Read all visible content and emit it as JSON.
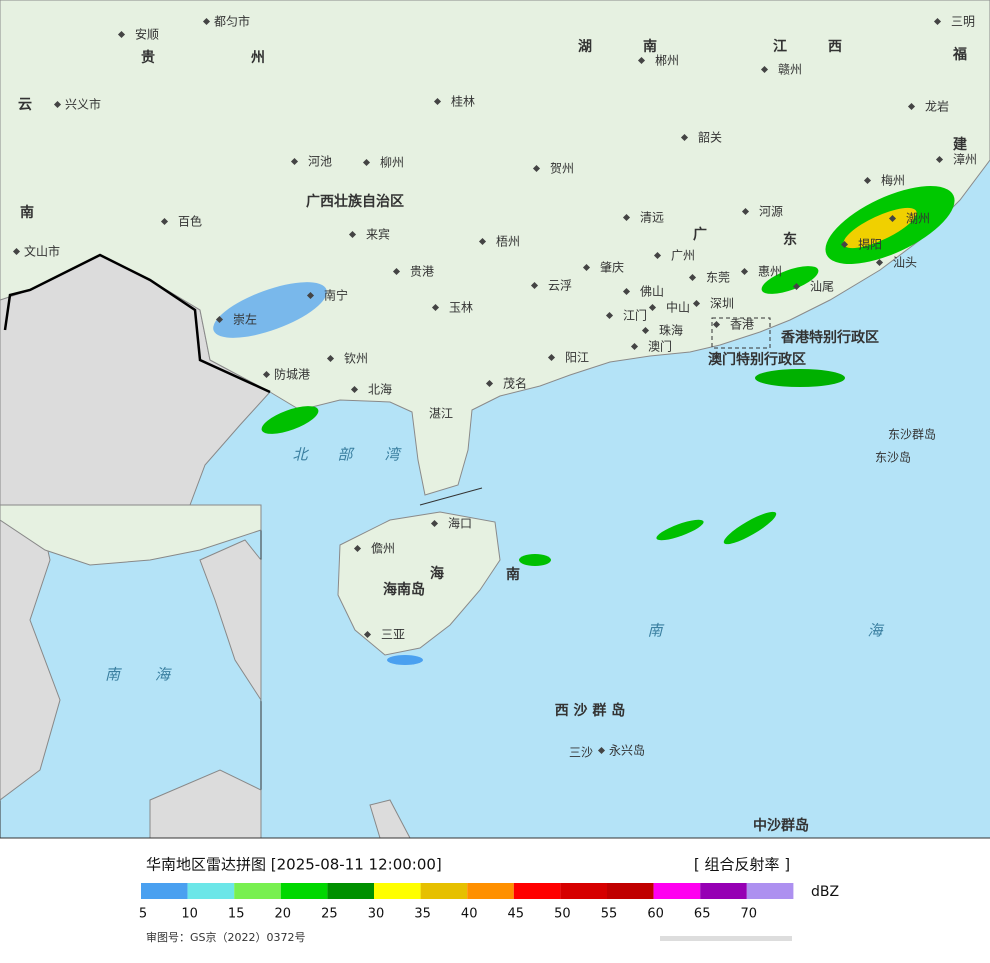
{
  "map": {
    "places": [
      "安顺",
      "都匀市",
      "贵",
      "州",
      "云",
      "兴义市",
      "桂林",
      "湖",
      "南",
      "郴州",
      "江",
      "西",
      "赣州",
      "三明",
      "福",
      "龙岩",
      "韶关",
      "建",
      "漳州",
      "河池",
      "柳州",
      "贺州",
      "梅州",
      "广西壮族自治区",
      "百色",
      "清远",
      "河源",
      "潮州",
      "来宾",
      "梧州",
      "广",
      "东",
      "揭阳",
      "汕头",
      "南",
      "文山市",
      "广州",
      "贵港",
      "肇庆",
      "东莞",
      "惠州",
      "南宁",
      "云浮",
      "佛山",
      "汕尾",
      "玉林",
      "深圳",
      "中山",
      "江门",
      "崇左",
      "珠海",
      "香港",
      "香港特别行政区",
      "澳门",
      "澳门特别行政区",
      "钦州",
      "阳江",
      "防城港",
      "北海",
      "茂名",
      "湛江",
      "北",
      "部",
      "湾",
      "东沙群岛",
      "东沙岛",
      "海口",
      "儋州",
      "海",
      "海南岛",
      "南",
      "三亚",
      "南",
      "海",
      "西 沙 群 岛",
      "三沙",
      "永兴岛",
      "中沙群岛"
    ]
  },
  "inset": {
    "labels": [
      "南",
      "海"
    ]
  },
  "footer": {
    "title": "华南地区雷达拼图 [2025-08-11 12:00:00]",
    "product": "[ 组合反射率 ]",
    "unit": "dBZ",
    "approval": "审图号：GS京（2022）0372号"
  },
  "legend": {
    "levels": [
      5,
      10,
      15,
      20,
      25,
      30,
      35,
      40,
      45,
      50,
      55,
      60,
      65,
      70
    ],
    "colors": [
      "#4aa0f0",
      "#6ce6e8",
      "#78f050",
      "#00d800",
      "#009000",
      "#ffff00",
      "#e6c000",
      "#ff9000",
      "#ff0000",
      "#d60000",
      "#c00000",
      "#ff00f0",
      "#9600b4",
      "#ad90f0"
    ]
  }
}
